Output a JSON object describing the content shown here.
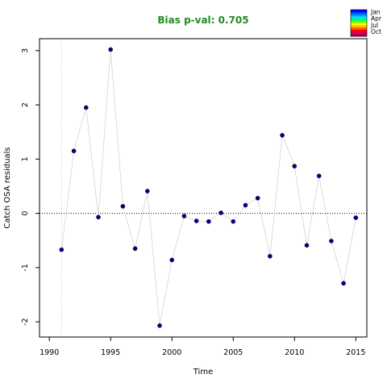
{
  "chart_data": {
    "type": "scatter",
    "title": "Bias p-val: 0.705",
    "title_color": "#228B22",
    "xlabel": "Time",
    "ylabel": "Catch OSA residuals",
    "xlim": [
      1989.2,
      2015.9
    ],
    "ylim": [
      -2.28,
      3.22
    ],
    "xticks": [
      1990,
      1995,
      2000,
      2005,
      2010,
      2015
    ],
    "yticks": [
      -2,
      -1,
      0,
      1,
      2,
      3
    ],
    "reference_line_y": 0,
    "reference_line_x": 1991,
    "point_color": "#00008B",
    "line_color": "#D3D3D3",
    "legend": {
      "position": "top-right",
      "labels": [
        "Jan",
        "Apr",
        "Jul",
        "Oct"
      ],
      "colors": [
        "#0000FF",
        "#0044FF",
        "#0099FF",
        "#00DDFF",
        "#00FF66",
        "#66FF00",
        "#FFFF00",
        "#FFBB00",
        "#FF6600",
        "#FF0000",
        "#DD0044",
        "#AA0066"
      ]
    },
    "x": [
      1991,
      1992,
      1993,
      1994,
      1995,
      1996,
      1997,
      1998,
      1999,
      2000,
      2001,
      2002,
      2003,
      2004,
      2005,
      2006,
      2007,
      2008,
      2009,
      2010,
      2011,
      2012,
      2013,
      2014,
      2015
    ],
    "y": [
      -0.67,
      1.15,
      1.95,
      -0.07,
      3.02,
      0.13,
      -0.65,
      0.41,
      -2.07,
      -0.86,
      -0.05,
      -0.14,
      -0.15,
      0.01,
      -0.15,
      0.15,
      0.28,
      -0.79,
      1.44,
      0.87,
      -0.59,
      0.69,
      -0.51,
      -1.29,
      -0.08
    ]
  }
}
